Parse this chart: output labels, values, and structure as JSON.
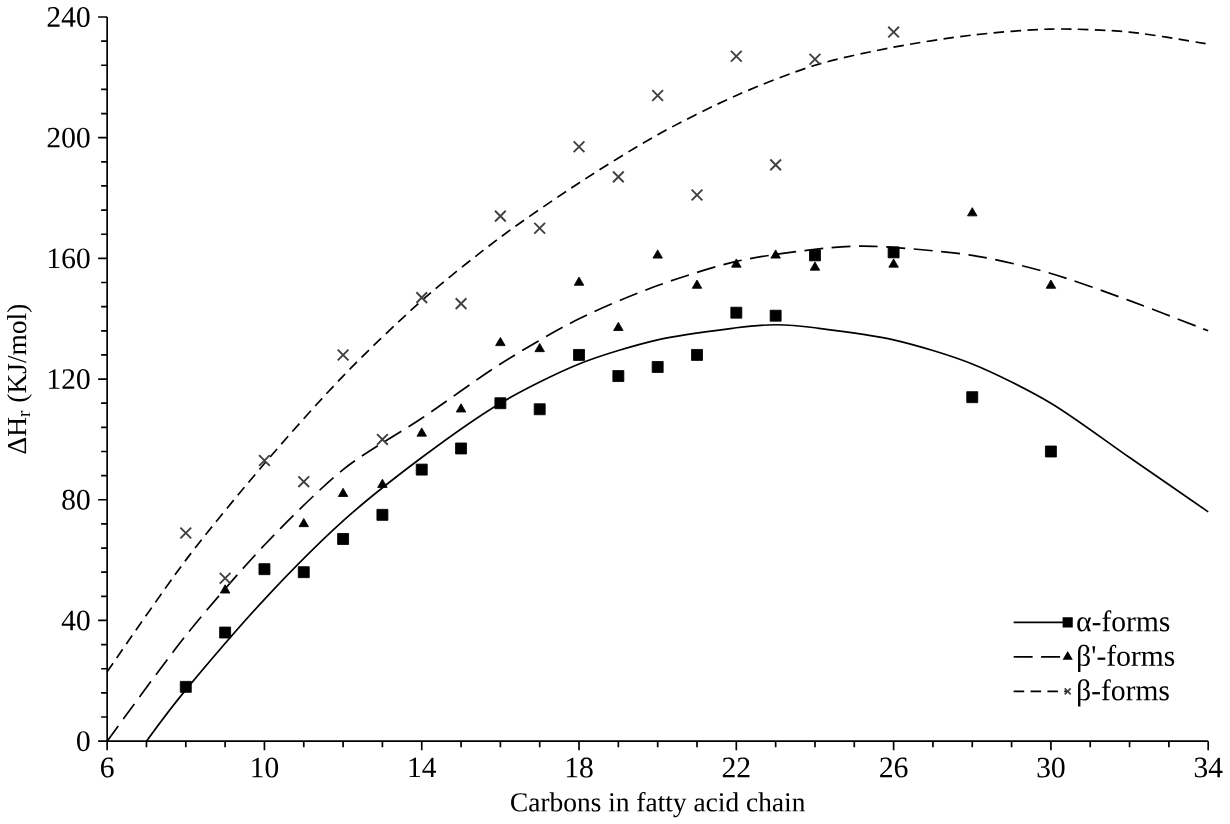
{
  "chart_data": {
    "type": "scatter",
    "xlabel": "Carbons in fatty acid chain",
    "ylabel": "ΔH$_{r}$ (KJ/mol)",
    "xlim": [
      6,
      34
    ],
    "xticks": [
      6,
      10,
      14,
      18,
      22,
      26,
      30,
      34
    ],
    "ylim": [
      0,
      240
    ],
    "yticks": [
      0,
      40,
      80,
      120,
      160,
      200,
      240
    ],
    "grid": false,
    "legend": "bottom right",
    "series": [
      {
        "name": "α-forms",
        "marker": "square",
        "color": "#000000",
        "x": [
          8,
          9,
          10,
          11,
          12,
          13,
          14,
          15,
          16,
          17,
          18,
          19,
          20,
          21,
          22,
          23,
          24,
          26,
          28,
          30
        ],
        "values": [
          18,
          36,
          57,
          56,
          67,
          75,
          90,
          97,
          112,
          110,
          128,
          121,
          124,
          128,
          142,
          141,
          161,
          162,
          114,
          96
        ]
      },
      {
        "name": "β'-forms",
        "marker": "triangle",
        "color": "#000000",
        "x": [
          9,
          11,
          12,
          13,
          14,
          15,
          16,
          17,
          18,
          19,
          20,
          21,
          22,
          23,
          24,
          26,
          28,
          30
        ],
        "values": [
          50,
          72,
          82,
          85,
          102,
          110,
          132,
          130,
          152,
          137,
          161,
          151,
          158,
          161,
          157,
          158,
          175,
          151
        ]
      },
      {
        "name": "β-forms",
        "marker": "cross",
        "color": "#404040",
        "x": [
          8,
          9,
          10,
          11,
          12,
          13,
          14,
          15,
          16,
          17,
          18,
          19,
          20,
          21,
          22,
          23,
          24,
          26
        ],
        "values": [
          69,
          54,
          93,
          86,
          128,
          100,
          147,
          145,
          174,
          170,
          197,
          187,
          214,
          181,
          227,
          191,
          226,
          235
        ]
      },
      {
        "type": "line",
        "line_style": "solid",
        "color": "#000000",
        "x": [
          7,
          8,
          10,
          12,
          14,
          16,
          18,
          20,
          22,
          23,
          24,
          26,
          28,
          30,
          32,
          34
        ],
        "values": [
          0,
          17,
          47,
          73,
          94,
          112,
          125,
          133,
          137,
          138,
          137,
          133,
          125,
          112,
          94,
          76
        ]
      },
      {
        "type": "line",
        "line_style": "dashed",
        "color": "#000000",
        "x": [
          6,
          8,
          10,
          12,
          14,
          16,
          18,
          20,
          22,
          24,
          25.5,
          28,
          30,
          32,
          34
        ],
        "values": [
          0,
          35,
          65,
          90,
          107,
          125,
          140,
          151,
          159,
          163,
          164,
          161,
          155,
          146,
          136
        ]
      },
      {
        "type": "line",
        "line_style": "densely dashed",
        "color": "#000000",
        "x": [
          6,
          8,
          10,
          12,
          14,
          16,
          18,
          20,
          22,
          24,
          26,
          28,
          30,
          32,
          34
        ],
        "values": [
          23,
          60,
          92,
          121,
          146,
          167,
          185,
          201,
          214,
          224,
          230,
          234,
          236,
          235,
          231
        ]
      }
    ]
  }
}
